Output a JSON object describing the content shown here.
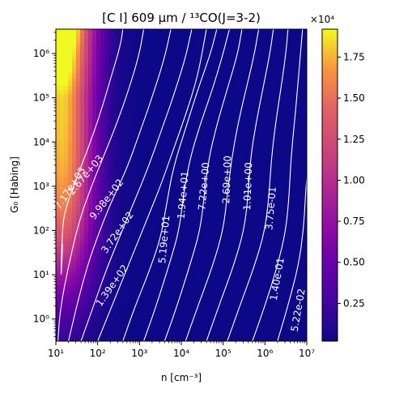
{
  "chart_data": {
    "type": "heatmap",
    "title": "[C I] 609 μm / ¹³CO(J=3-2)",
    "xlabel": "n [cm⁻³]",
    "ylabel": "G₀ [Habing]",
    "x_scale": "log",
    "y_scale": "log",
    "x_range": [
      1,
      7
    ],
    "y_range": [
      -0.5,
      6.55
    ],
    "x_ticks": [
      {
        "value": 1,
        "label": "10¹"
      },
      {
        "value": 2,
        "label": "10²"
      },
      {
        "value": 3,
        "label": "10³"
      },
      {
        "value": 4,
        "label": "10⁴"
      },
      {
        "value": 5,
        "label": "10⁵"
      },
      {
        "value": 6,
        "label": "10⁶"
      },
      {
        "value": 7,
        "label": "10⁷"
      }
    ],
    "y_ticks": [
      {
        "value": 0,
        "label": "10⁰"
      },
      {
        "value": 1,
        "label": "10¹"
      },
      {
        "value": 2,
        "label": "10²"
      },
      {
        "value": 3,
        "label": "10³"
      },
      {
        "value": 4,
        "label": "10⁴"
      },
      {
        "value": 5,
        "label": "10⁵"
      },
      {
        "value": 6,
        "label": "10⁶"
      }
    ],
    "colorbar": {
      "colormap": "plasma",
      "range": [
        0.02,
        1.92
      ],
      "ticks": [
        {
          "value": 0.25,
          "label": "0.25"
        },
        {
          "value": 0.5,
          "label": "0.50"
        },
        {
          "value": 0.75,
          "label": "0.75"
        },
        {
          "value": 1.0,
          "label": "1.00"
        },
        {
          "value": 1.25,
          "label": "1.25"
        },
        {
          "value": 1.5,
          "label": "1.50"
        },
        {
          "value": 1.75,
          "label": "1.75"
        }
      ],
      "multiplier_label": "×10⁴"
    },
    "contours": [
      {
        "level": "7.17e+03",
        "points": [
          [
            1.16,
            1.7
          ],
          [
            1.14,
            1.2
          ],
          [
            1.12,
            0.9
          ],
          [
            1.15,
            1.9
          ],
          [
            1.2,
            2.4
          ],
          [
            1.42,
            3.0
          ],
          [
            1.75,
            3.8
          ],
          [
            2.05,
            4.6
          ],
          [
            2.3,
            5.4
          ],
          [
            2.55,
            6.2
          ],
          [
            2.6,
            6.55
          ]
        ],
        "label_at": [
          1.35,
          2.95
        ],
        "label_angle": -57
      },
      {
        "level": "2.67e+03",
        "points": [
          [
            1.05,
            -0.5
          ],
          [
            1.1,
            0.2
          ],
          [
            1.3,
            1.2
          ],
          [
            1.55,
            2.2
          ],
          [
            1.85,
            3.0
          ],
          [
            2.15,
            3.7
          ],
          [
            2.45,
            4.4
          ],
          [
            2.75,
            5.2
          ],
          [
            3.0,
            6.0
          ],
          [
            3.1,
            6.55
          ]
        ],
        "label_at": [
          1.72,
          3.25
        ],
        "label_angle": -50
      },
      {
        "level": "9.98e+02",
        "points": [
          [
            1.3,
            -0.5
          ],
          [
            1.5,
            0.3
          ],
          [
            1.75,
            1.2
          ],
          [
            2.05,
            2.0
          ],
          [
            2.35,
            2.7
          ],
          [
            2.7,
            3.4
          ],
          [
            3.0,
            4.2
          ],
          [
            3.3,
            5.0
          ],
          [
            3.6,
            5.9
          ],
          [
            3.75,
            6.55
          ]
        ],
        "label_at": [
          2.22,
          2.7
        ],
        "label_angle": -52
      },
      {
        "level": "3.72e+02",
        "points": [
          [
            1.6,
            -0.5
          ],
          [
            1.9,
            0.3
          ],
          [
            2.2,
            1.1
          ],
          [
            2.5,
            1.8
          ],
          [
            2.85,
            2.6
          ],
          [
            3.2,
            3.4
          ],
          [
            3.5,
            4.2
          ],
          [
            3.8,
            5.0
          ],
          [
            4.1,
            5.9
          ],
          [
            4.25,
            6.55
          ]
        ],
        "label_at": [
          2.48,
          1.95
        ],
        "label_angle": -55
      },
      {
        "level": "1.39e+02",
        "points": [
          [
            2.0,
            -0.5
          ],
          [
            2.3,
            0.2
          ],
          [
            2.6,
            0.9
          ],
          [
            2.9,
            1.6
          ],
          [
            3.2,
            2.3
          ],
          [
            3.5,
            3.0
          ],
          [
            3.8,
            3.8
          ],
          [
            4.1,
            4.6
          ],
          [
            4.4,
            5.5
          ],
          [
            4.6,
            6.55
          ]
        ],
        "label_at": [
          2.35,
          0.75
        ],
        "label_angle": -55
      },
      {
        "level": "5.19e+01",
        "points": [
          [
            2.6,
            -0.5
          ],
          [
            2.9,
            0.3
          ],
          [
            3.2,
            1.0
          ],
          [
            3.5,
            1.8
          ],
          [
            3.65,
            2.6
          ],
          [
            3.8,
            3.4
          ],
          [
            4.1,
            4.3
          ],
          [
            4.4,
            5.2
          ],
          [
            4.7,
            6.0
          ],
          [
            4.85,
            6.55
          ]
        ],
        "label_at": [
          3.6,
          1.8
        ],
        "label_angle": -85
      },
      {
        "level": "1.94e+01",
        "points": [
          [
            3.1,
            -0.5
          ],
          [
            3.4,
            0.3
          ],
          [
            3.7,
            1.2
          ],
          [
            3.95,
            2.0
          ],
          [
            4.05,
            2.8
          ],
          [
            4.2,
            3.6
          ],
          [
            4.45,
            4.4
          ],
          [
            4.75,
            5.2
          ],
          [
            5.0,
            6.0
          ],
          [
            5.15,
            6.55
          ]
        ],
        "label_at": [
          4.05,
          2.8
        ],
        "label_angle": -85
      },
      {
        "level": "7.22e+00",
        "points": [
          [
            3.6,
            -0.5
          ],
          [
            3.9,
            0.3
          ],
          [
            4.2,
            1.2
          ],
          [
            4.45,
            2.0
          ],
          [
            4.55,
            2.8
          ],
          [
            4.65,
            3.6
          ],
          [
            4.85,
            4.4
          ],
          [
            5.1,
            5.2
          ],
          [
            5.35,
            6.0
          ],
          [
            5.45,
            6.55
          ]
        ],
        "label_at": [
          4.55,
          3.0
        ],
        "label_angle": -85
      },
      {
        "level": "2.69e+00",
        "points": [
          [
            4.1,
            -0.5
          ],
          [
            4.4,
            0.3
          ],
          [
            4.75,
            1.2
          ],
          [
            5.0,
            2.0
          ],
          [
            5.1,
            2.8
          ],
          [
            5.2,
            3.6
          ],
          [
            5.35,
            4.4
          ],
          [
            5.55,
            5.2
          ],
          [
            5.75,
            6.0
          ],
          [
            5.85,
            6.55
          ]
        ],
        "label_at": [
          5.1,
          3.15
        ],
        "label_angle": -88
      },
      {
        "level": "1.01e+00",
        "points": [
          [
            4.6,
            -0.5
          ],
          [
            4.9,
            0.3
          ],
          [
            5.25,
            1.2
          ],
          [
            5.5,
            2.0
          ],
          [
            5.6,
            2.8
          ],
          [
            5.65,
            3.6
          ],
          [
            5.78,
            4.4
          ],
          [
            5.95,
            5.2
          ],
          [
            6.12,
            6.0
          ],
          [
            6.2,
            6.55
          ]
        ],
        "label_at": [
          5.6,
          3.0
        ],
        "label_angle": -88
      },
      {
        "level": "3.75e-01",
        "points": [
          [
            5.1,
            -0.5
          ],
          [
            5.4,
            0.3
          ],
          [
            5.75,
            1.2
          ],
          [
            6.0,
            2.0
          ],
          [
            6.1,
            2.8
          ],
          [
            6.15,
            3.6
          ],
          [
            6.25,
            4.4
          ],
          [
            6.38,
            5.2
          ],
          [
            6.5,
            6.0
          ],
          [
            6.55,
            6.55
          ]
        ],
        "label_at": [
          6.15,
          2.5
        ],
        "label_angle": -85
      },
      {
        "level": "1.40e-01",
        "points": [
          [
            5.7,
            -0.5
          ],
          [
            6.0,
            0.3
          ],
          [
            6.3,
            1.2
          ],
          [
            6.5,
            2.0
          ],
          [
            6.58,
            2.8
          ],
          [
            6.62,
            3.6
          ],
          [
            6.7,
            4.4
          ],
          [
            6.78,
            5.2
          ],
          [
            6.85,
            6.0
          ],
          [
            6.9,
            6.55
          ]
        ],
        "label_at": [
          6.3,
          0.9
        ],
        "label_angle": -80
      },
      {
        "level": "5.22e-02",
        "points": [
          [
            6.3,
            -0.5
          ],
          [
            6.55,
            0.3
          ],
          [
            6.8,
            1.2
          ],
          [
            6.92,
            2.0
          ],
          [
            6.97,
            2.8
          ],
          [
            7.0,
            3.2
          ]
        ],
        "label_at": [
          6.8,
          0.2
        ],
        "label_angle": -80
      }
    ]
  }
}
